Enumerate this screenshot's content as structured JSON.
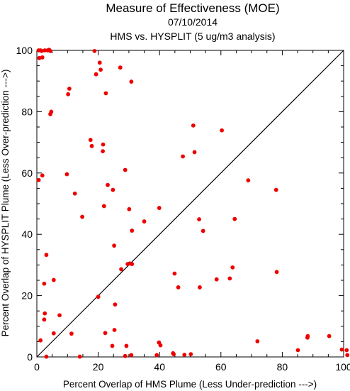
{
  "chart_data": {
    "type": "scatter",
    "title": "Measure of Effectiveness (MOE)",
    "subtitle_date": "07/10/2014",
    "subtitle_analysis": "HMS vs. HYSPLIT  (5 ug/m3 analysis)",
    "xlabel": "Percent Overlap of HMS Plume (Less Under-prediction --->)",
    "ylabel": "Percent Overlap of HYSPLIT Plume (Less Over-prediction --->)",
    "xlim": [
      0,
      100
    ],
    "ylim": [
      0,
      100
    ],
    "x_ticks": [
      0,
      20,
      40,
      60,
      80,
      100
    ],
    "y_ticks": [
      0,
      20,
      40,
      60,
      80,
      100
    ],
    "grid": false,
    "reference_line": "diagonal y = x",
    "point_color": "#ee0000",
    "points": [
      [
        0.6,
        100
      ],
      [
        1.2,
        100
      ],
      [
        1.6,
        99.8
      ],
      [
        2.6,
        100
      ],
      [
        3.5,
        100
      ],
      [
        4.0,
        100.2
      ],
      [
        0.8,
        97.5
      ],
      [
        1.8,
        97.7
      ],
      [
        4.4,
        99.8
      ],
      [
        18.8,
        99.8
      ],
      [
        20.5,
        96.0
      ],
      [
        20.8,
        93.7
      ],
      [
        19.3,
        92.2
      ],
      [
        27.2,
        94.4
      ],
      [
        30.8,
        89.8
      ],
      [
        10.6,
        87.5
      ],
      [
        10.2,
        85.7
      ],
      [
        22.5,
        86.0
      ],
      [
        4.7,
        80.0
      ],
      [
        4.4,
        79.2
      ],
      [
        17.5,
        70.8
      ],
      [
        17.9,
        68.8
      ],
      [
        21.6,
        69.3
      ],
      [
        21.5,
        67.1
      ],
      [
        51.0,
        75.5
      ],
      [
        60.3,
        73.9
      ],
      [
        51.4,
        66.8
      ],
      [
        47.6,
        65.4
      ],
      [
        28.8,
        61.0
      ],
      [
        9.8,
        59.6
      ],
      [
        1.8,
        59.2
      ],
      [
        0.6,
        57.7
      ],
      [
        68.9,
        57.6
      ],
      [
        23.1,
        56.1
      ],
      [
        24.8,
        54.5
      ],
      [
        78.0,
        54.5
      ],
      [
        12.4,
        53.3
      ],
      [
        21.9,
        49.2
      ],
      [
        30.1,
        48.2
      ],
      [
        39.9,
        48.6
      ],
      [
        14.8,
        45.7
      ],
      [
        52.9,
        44.9
      ],
      [
        64.5,
        45.0
      ],
      [
        35.0,
        44.2
      ],
      [
        54.2,
        41.1
      ],
      [
        31.0,
        41.2
      ],
      [
        25.2,
        36.3
      ],
      [
        3.1,
        33.3
      ],
      [
        30.3,
        30.5
      ],
      [
        29.6,
        30.3
      ],
      [
        31.0,
        30.3
      ],
      [
        27.5,
        28.6
      ],
      [
        78.2,
        27.7
      ],
      [
        44.9,
        27.2
      ],
      [
        63.8,
        29.2
      ],
      [
        58.6,
        25.3
      ],
      [
        62.9,
        25.6
      ],
      [
        5.5,
        25.1
      ],
      [
        2.4,
        23.9
      ],
      [
        46.1,
        22.7
      ],
      [
        53.1,
        22.7
      ],
      [
        20.0,
        19.6
      ],
      [
        25.5,
        17.1
      ],
      [
        2.6,
        14.2
      ],
      [
        7.4,
        13.6
      ],
      [
        2.4,
        12.2
      ],
      [
        25.3,
        8.8
      ],
      [
        5.5,
        7.7
      ],
      [
        11.3,
        7.6
      ],
      [
        22.3,
        7.8
      ],
      [
        1.2,
        5.4
      ],
      [
        71.9,
        5.1
      ],
      [
        39.8,
        4.7
      ],
      [
        40.3,
        3.8
      ],
      [
        24.6,
        3.6
      ],
      [
        29.2,
        3.6
      ],
      [
        88.3,
        6.8
      ],
      [
        88.2,
        6.3
      ],
      [
        95.3,
        6.8
      ],
      [
        85.1,
        2.2
      ],
      [
        44.4,
        1.2
      ],
      [
        44.6,
        0.9
      ],
      [
        99.4,
        2.4
      ],
      [
        101.0,
        2.2
      ],
      [
        101.2,
        0.6
      ],
      [
        3.1,
        0.1
      ],
      [
        14.0,
        0.1
      ],
      [
        28.8,
        0.3
      ],
      [
        30.8,
        0.6
      ],
      [
        39.1,
        0.6
      ],
      [
        48.1,
        0.7
      ],
      [
        50.2,
        0.9
      ]
    ]
  }
}
